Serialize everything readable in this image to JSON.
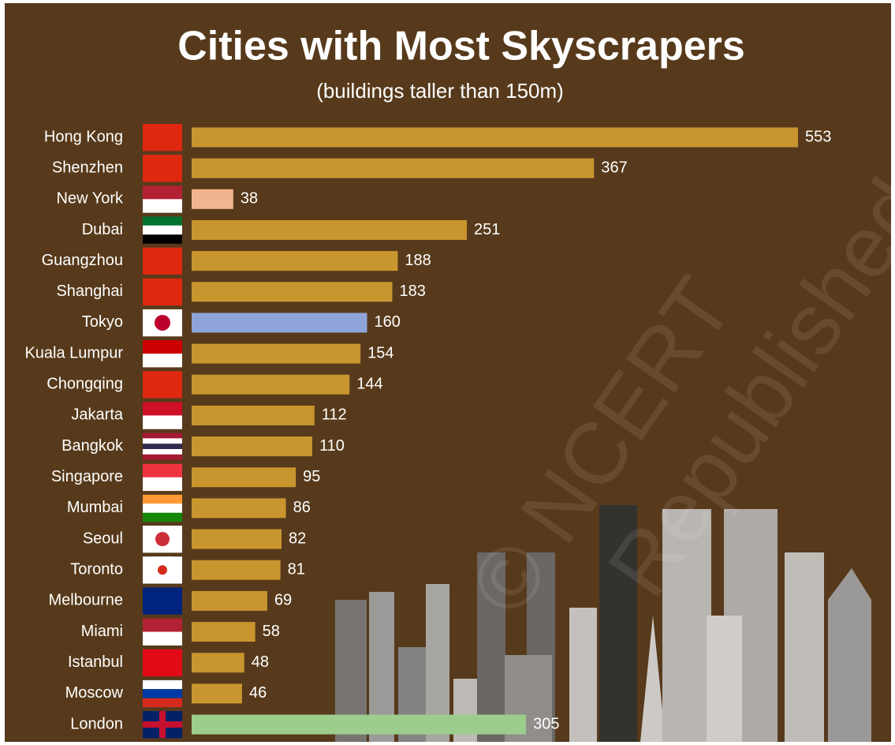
{
  "chart_data": {
    "type": "bar",
    "orientation": "horizontal",
    "title": "Cities with Most Skyscrapers",
    "subtitle": "(buildings taller than 150m)",
    "categories": [
      "Hong Kong",
      "Shenzhen",
      "New York",
      "Dubai",
      "Guangzhou",
      "Shanghai",
      "Tokyo",
      "Kuala Lumpur",
      "Chongqing",
      "Jakarta",
      "Bangkok",
      "Singapore",
      "Mumbai",
      "Seoul",
      "Toronto",
      "Melbourne",
      "Miami",
      "Istanbul",
      "Moscow",
      "London"
    ],
    "values": [
      553,
      367,
      38,
      251,
      188,
      183,
      160,
      154,
      144,
      112,
      110,
      95,
      86,
      82,
      81,
      69,
      58,
      48,
      46,
      305
    ],
    "colors": [
      "#c9952f",
      "#c9952f",
      "#f2b48e",
      "#c9952f",
      "#c9952f",
      "#c9952f",
      "#8fa4d8",
      "#c9952f",
      "#c9952f",
      "#c9952f",
      "#c9952f",
      "#c9952f",
      "#c9952f",
      "#c9952f",
      "#c9952f",
      "#c9952f",
      "#c9952f",
      "#c9952f",
      "#c9952f",
      "#9dcd8c"
    ],
    "watermark": [
      "© NCERT",
      "Republished"
    ]
  }
}
